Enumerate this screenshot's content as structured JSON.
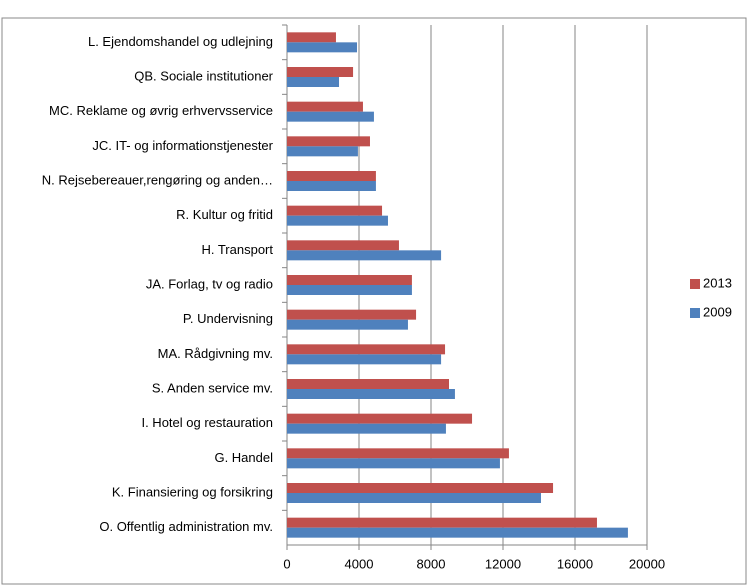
{
  "chart_data": {
    "type": "hbar",
    "categories": [
      "L. Ejendomshandel og udlejning",
      "QB. Sociale institutioner",
      "MC. Reklame og øvrig erhvervsservice",
      "JC. IT- og informationstjenester",
      "N. Rejsebereauer,rengøring og anden…",
      "R. Kultur og fritid",
      "H. Transport",
      "JA. Forlag, tv og radio",
      "P. Undervisning",
      "MA. Rådgivning  mv.",
      "S. Anden service mv.",
      "I. Hotel og restauration",
      "G. Handel",
      "K. Finansiering og forsikring",
      "O. Offentlig administration  mv."
    ],
    "series": [
      {
        "name": "2013",
        "color": "#c0504d",
        "values": [
          2720,
          3670,
          4220,
          4610,
          4940,
          5280,
          6220,
          6940,
          7170,
          8780,
          9000,
          10280,
          12330,
          14780,
          17220
        ]
      },
      {
        "name": "2009",
        "color": "#4f81bd",
        "values": [
          3890,
          2890,
          4830,
          3940,
          4940,
          5610,
          8560,
          6940,
          6720,
          8560,
          9330,
          8830,
          11830,
          14110,
          18940
        ]
      }
    ],
    "xlim": [
      0,
      20000
    ],
    "xticks": [
      0,
      4000,
      8000,
      12000,
      16000,
      20000
    ],
    "grid": true,
    "legend": "right"
  }
}
